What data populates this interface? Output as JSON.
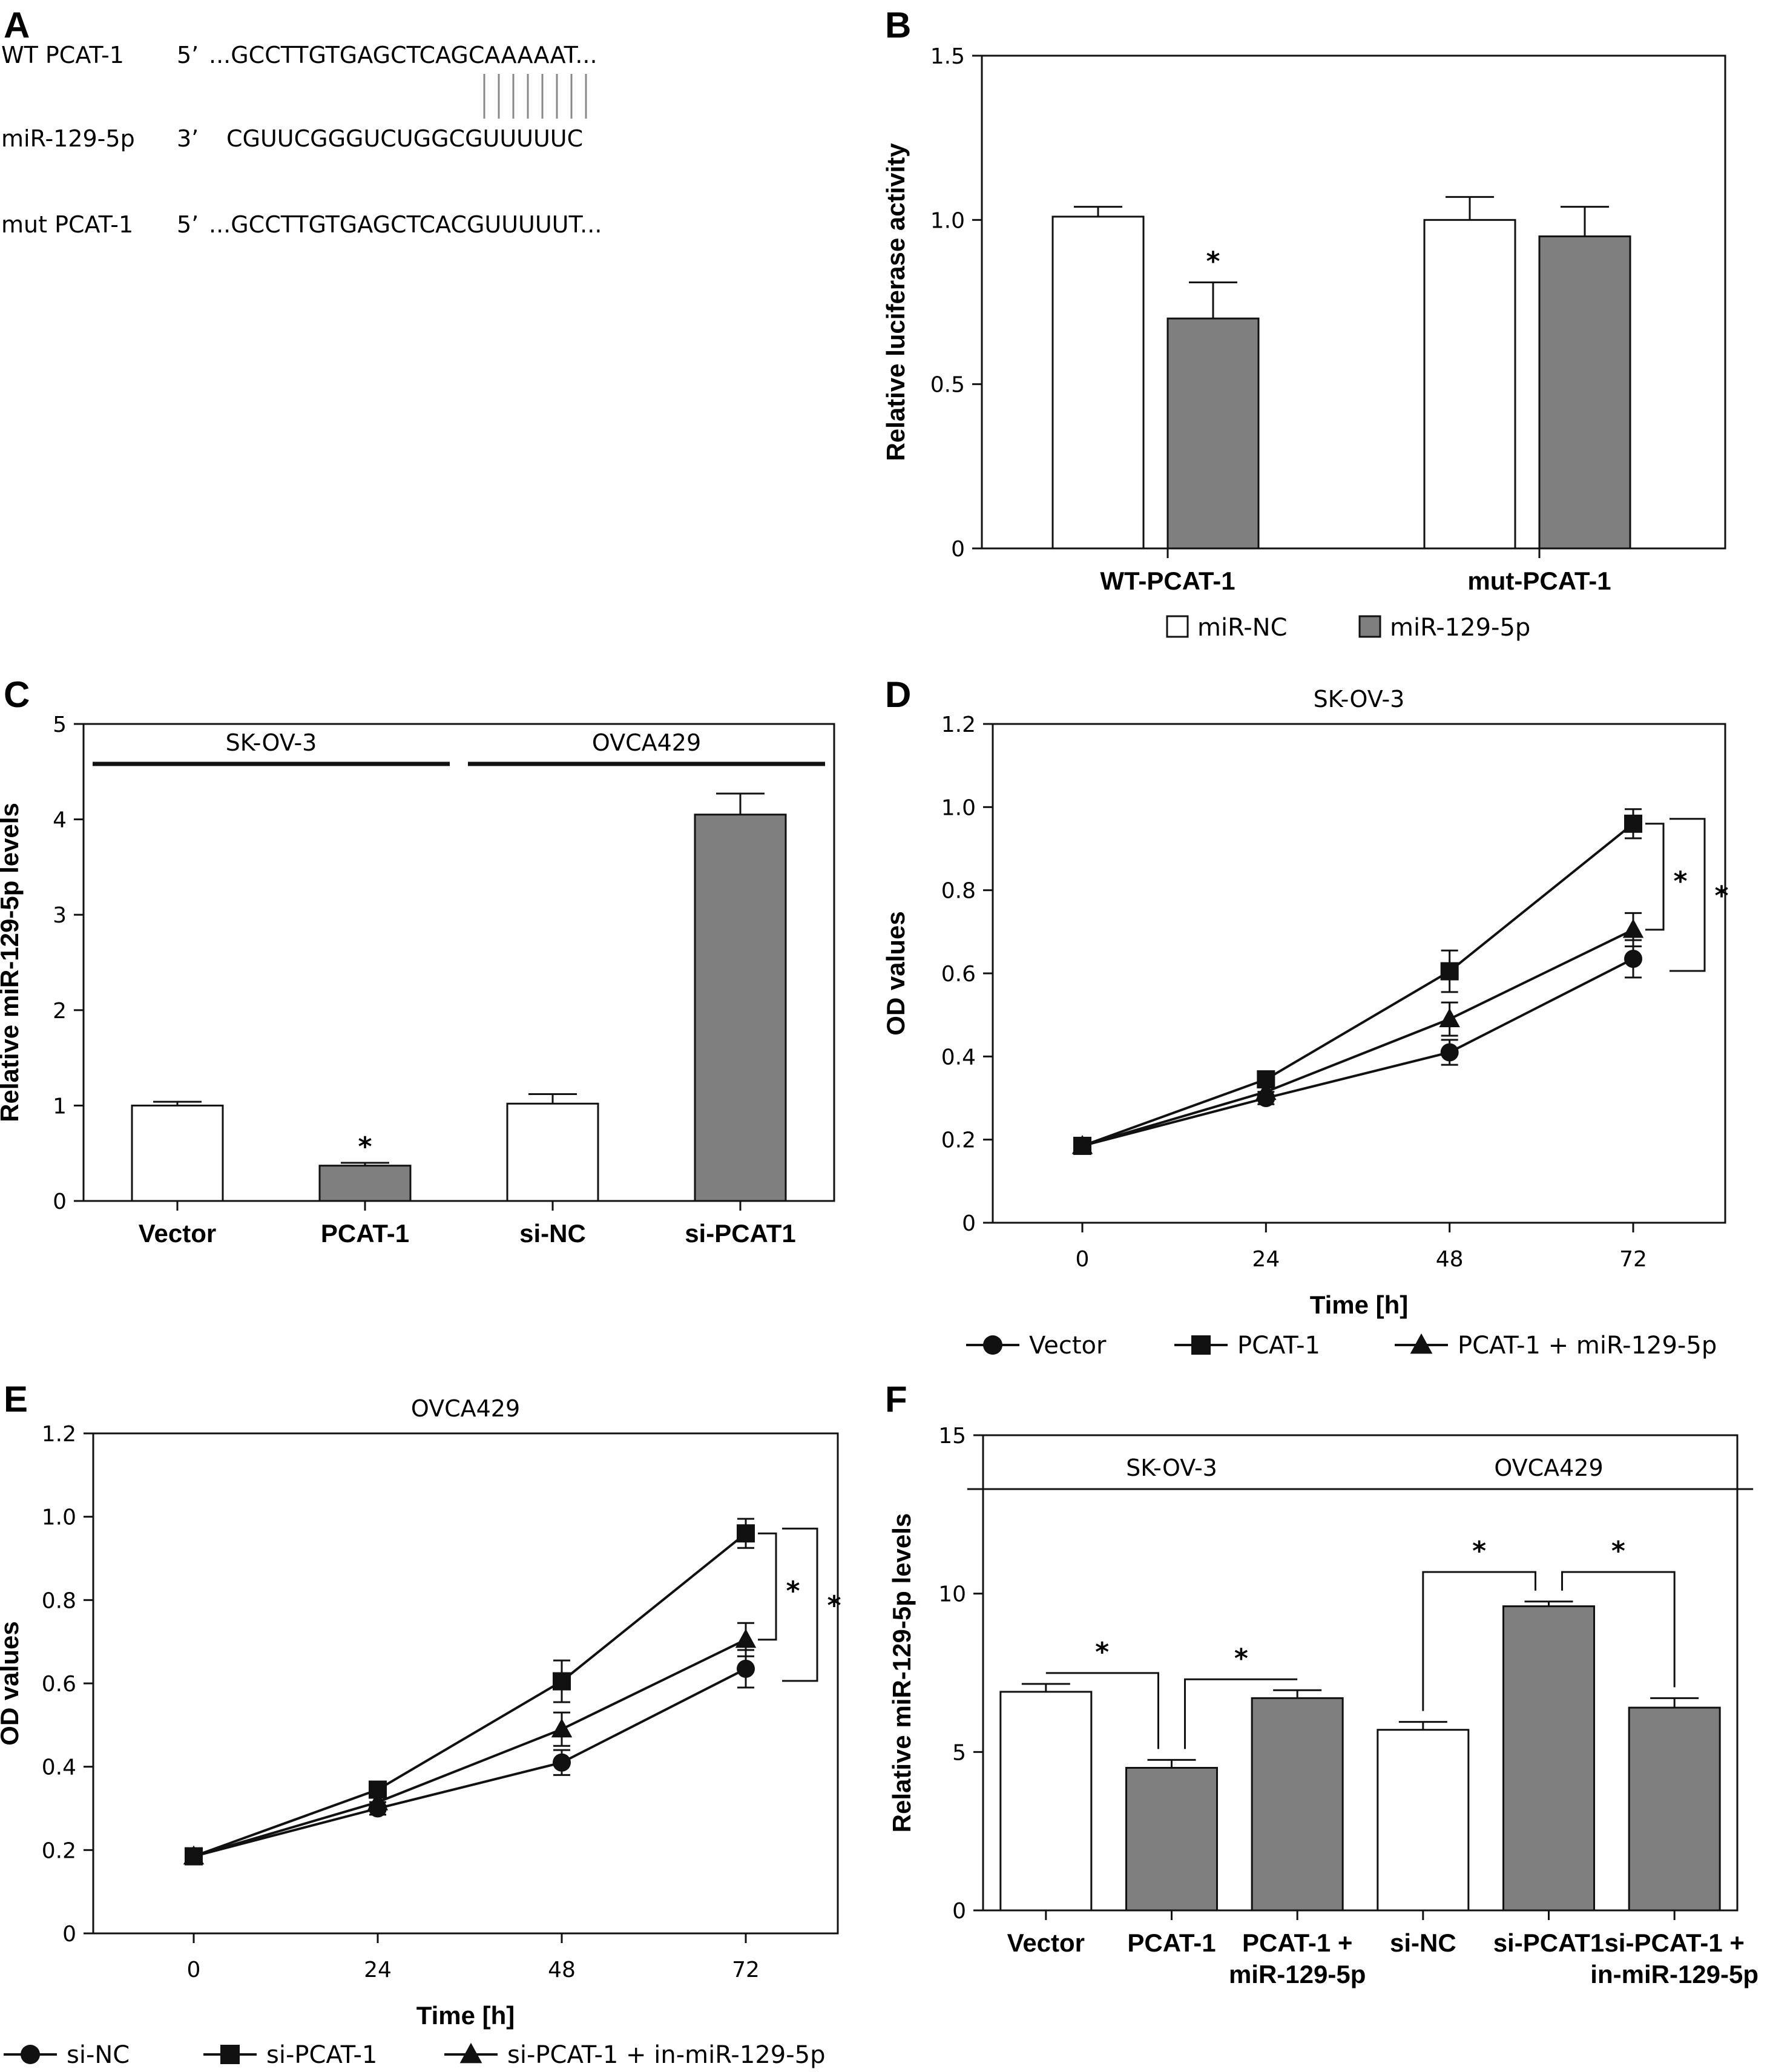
{
  "panel_a": {
    "label": "A",
    "rows": [
      {
        "name": "WT  PCAT-1",
        "end": "5’",
        "seq": "...GCCTTGTGAGCTCAGCAAAAAT..."
      },
      {
        "name": "miR-129-5p",
        "end": "3’",
        "seq": "CGUUCGGGUCUGGCGUUUUUC"
      },
      {
        "name": "mut  PCAT-1",
        "end": "5’",
        "seq": "...GCCTTGTGAGCTCACGUUUUUT..."
      }
    ],
    "pairing_lines": 8
  },
  "colors": {
    "open": "#ffffff",
    "filled": "#7f7f7f",
    "stroke": "#111111"
  },
  "chart_data": [
    {
      "panel": "B",
      "type": "bar",
      "ylabel": "Relative luciferase activity",
      "ylim": [
        0,
        1.5
      ],
      "yticks": [
        "0",
        "0.5",
        "1.0",
        "1.5"
      ],
      "categories": [
        "WT-PCAT-1",
        "mut-PCAT-1"
      ],
      "series": [
        {
          "name": "miR-NC",
          "values": [
            1.01,
            1.0
          ],
          "errors": [
            0.03,
            0.07
          ],
          "fill": "open"
        },
        {
          "name": "miR-129-5p",
          "values": [
            0.7,
            0.95
          ],
          "errors": [
            0.11,
            0.09
          ],
          "fill": "filled"
        }
      ],
      "annotations": [
        {
          "text": "*",
          "category": 0,
          "series": 1
        }
      ],
      "legend": "bottom"
    },
    {
      "panel": "C",
      "type": "bar",
      "ylabel": "Relative miR-129-5p levels",
      "ylim": [
        0,
        5
      ],
      "yticks": [
        "0",
        "1",
        "2",
        "3",
        "4",
        "5"
      ],
      "categories": [
        "Vector",
        "PCAT-1",
        "si-NC",
        "si-PCAT1"
      ],
      "values": [
        1.0,
        0.37,
        1.02,
        4.05
      ],
      "errors": [
        0.04,
        0.03,
        0.1,
        0.22
      ],
      "fills": [
        "open",
        "filled",
        "open",
        "filled"
      ],
      "groups": [
        {
          "text": "SK-OV-3",
          "from": 0,
          "to": 1
        },
        {
          "text": "OVCA429",
          "from": 2,
          "to": 3
        }
      ],
      "annotations": [
        {
          "text": "*",
          "index": 1
        }
      ]
    },
    {
      "panel": "D",
      "type": "line",
      "title": "SK-OV-3",
      "xlabel": "Time [h]",
      "ylabel": "OD values",
      "x": [
        0,
        24,
        48,
        72
      ],
      "xticks": [
        "0",
        "24",
        "48",
        "72"
      ],
      "ylim": [
        0,
        1.2
      ],
      "yticks": [
        "0",
        "0.2",
        "0.4",
        "0.6",
        "0.8",
        "1.0",
        "1.2"
      ],
      "series": [
        {
          "name": "Vector",
          "marker": "circle",
          "values": [
            0.185,
            0.3,
            0.41,
            0.635
          ],
          "errors": [
            0.01,
            0.015,
            0.03,
            0.045
          ]
        },
        {
          "name": "PCAT-1",
          "marker": "square",
          "values": [
            0.185,
            0.345,
            0.605,
            0.96
          ],
          "errors": [
            0.01,
            0.015,
            0.05,
            0.035
          ]
        },
        {
          "name": "PCAT-1 + miR-129-5p",
          "marker": "triangle",
          "values": [
            0.185,
            0.315,
            0.49,
            0.705
          ],
          "errors": [
            0.01,
            0.015,
            0.04,
            0.04
          ]
        }
      ],
      "annotations": [
        "*",
        "*"
      ],
      "legend": "bottom"
    },
    {
      "panel": "E",
      "type": "line",
      "title": "OVCA429",
      "xlabel": "Time [h]",
      "ylabel": "OD values",
      "x": [
        0,
        24,
        48,
        72
      ],
      "xticks": [
        "0",
        "24",
        "48",
        "72"
      ],
      "ylim": [
        0,
        1.2
      ],
      "yticks": [
        "0",
        "0.2",
        "0.4",
        "0.6",
        "0.8",
        "1.0",
        "1.2"
      ],
      "series": [
        {
          "name": "si-NC",
          "marker": "circle",
          "values": [
            0.185,
            0.3,
            0.41,
            0.635
          ],
          "errors": [
            0.01,
            0.015,
            0.03,
            0.045
          ]
        },
        {
          "name": "si-PCAT-1",
          "marker": "square",
          "values": [
            0.185,
            0.345,
            0.605,
            0.96
          ],
          "errors": [
            0.01,
            0.015,
            0.05,
            0.035
          ]
        },
        {
          "name": "si-PCAT-1 + in-miR-129-5p",
          "marker": "triangle",
          "values": [
            0.185,
            0.315,
            0.49,
            0.705
          ],
          "errors": [
            0.01,
            0.015,
            0.04,
            0.04
          ]
        }
      ],
      "annotations": [
        "*",
        "*"
      ],
      "legend": "bottom"
    },
    {
      "panel": "F",
      "type": "bar",
      "ylabel": "Relative miR-129-5p levels",
      "ylim": [
        0,
        15
      ],
      "yticks": [
        "0",
        "5",
        "10",
        "15"
      ],
      "categories": [
        [
          "Vector"
        ],
        [
          "PCAT-1"
        ],
        [
          "PCAT-1 +",
          "miR-129-5p"
        ],
        [
          "si-NC"
        ],
        [
          "si-PCAT1"
        ],
        [
          "si-PCAT-1 +",
          "in-miR-129-5p"
        ]
      ],
      "values": [
        6.9,
        4.5,
        6.7,
        5.7,
        9.6,
        6.4
      ],
      "errors": [
        0.25,
        0.25,
        0.25,
        0.25,
        0.15,
        0.3
      ],
      "fills": [
        "open",
        "filled",
        "filled",
        "open",
        "filled",
        "filled"
      ],
      "groups": [
        {
          "text": "SK-OV-3",
          "from": 0,
          "to": 2
        },
        {
          "text": "OVCA429",
          "from": 3,
          "to": 5
        }
      ],
      "comparisons": [
        {
          "a": 0,
          "b": 1,
          "text": "*"
        },
        {
          "a": 1,
          "b": 2,
          "text": "*"
        },
        {
          "a": 3,
          "b": 4,
          "text": "*"
        },
        {
          "a": 4,
          "b": 5,
          "text": "*"
        }
      ]
    }
  ]
}
